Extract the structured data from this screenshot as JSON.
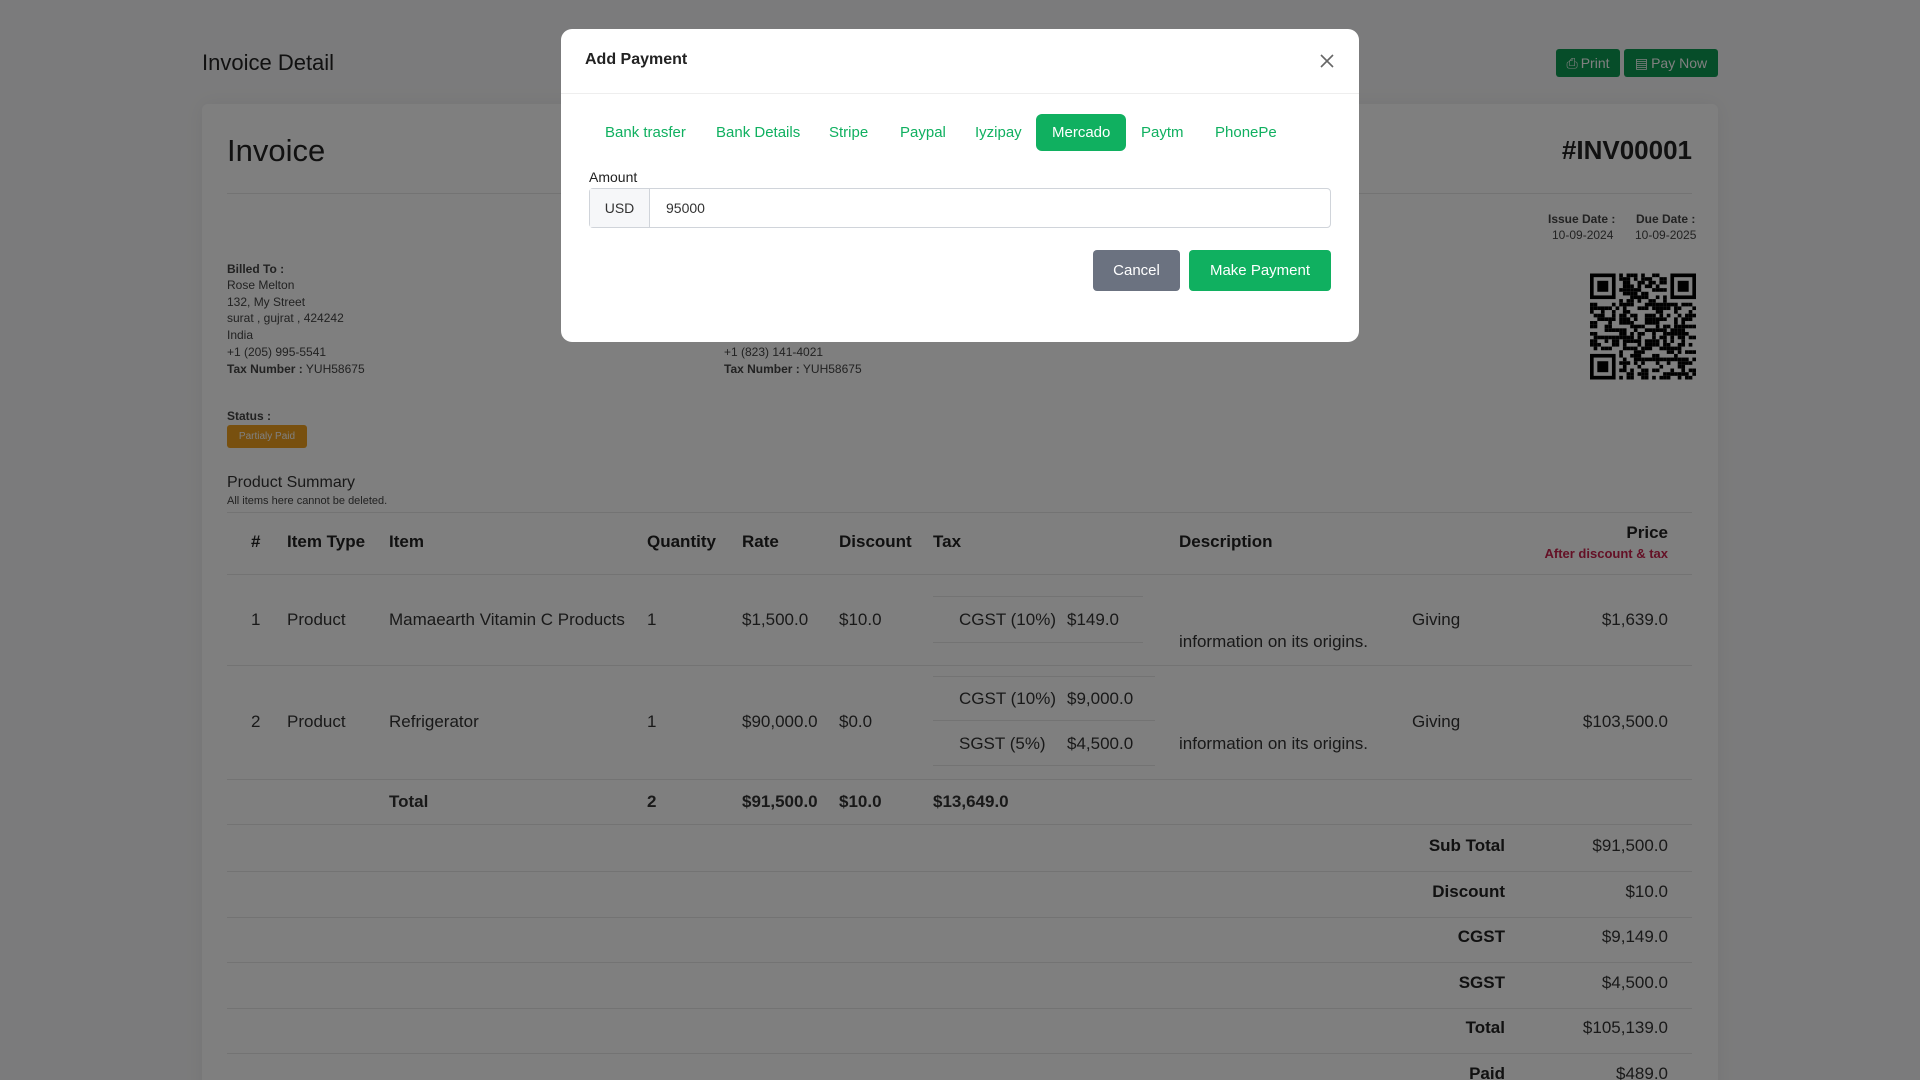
{
  "page": {
    "title": "Invoice Detail",
    "print_label": "Print",
    "pay_now_label": "Pay Now",
    "icons": {
      "print": "printer-icon",
      "pay": "credit-card-icon"
    }
  },
  "invoice": {
    "heading": "Invoice",
    "number": "#INV00001",
    "issue_date_label": "Issue Date :",
    "issue_date": "10-09-2024",
    "due_date_label": "Due Date :",
    "due_date": "10-09-2025",
    "billed_to": {
      "label": "Billed To :",
      "name": "Rose Melton",
      "street": "132, My Street",
      "city": "surat , gujrat , 424242",
      "country": "India",
      "phone": "+1 (205) 995-5541",
      "tax_label": "Tax Number :",
      "tax": "YUH58675"
    },
    "shipped_to": {
      "phone": "+1 (823) 141-4021",
      "tax_label": "Tax Number :",
      "tax": "YUH58675"
    },
    "status_label": "Status :",
    "status": "Partialy Paid",
    "status_color": "#f0a11e"
  },
  "summary": {
    "title": "Product Summary",
    "subtitle": "All items here cannot be deleted.",
    "headers": {
      "num": "#",
      "type": "Item Type",
      "item": "Item",
      "qty": "Quantity",
      "rate": "Rate",
      "discount": "Discount",
      "tax": "Tax",
      "desc": "Description",
      "price": "Price",
      "price_note": "After discount & tax"
    },
    "rows": [
      {
        "num": "1",
        "type": "Product",
        "item": "Mamaearth Vitamin C Products",
        "qty": "1",
        "rate": "$1,500.0",
        "discount": "$10.0",
        "taxes": [
          {
            "name": "CGST (10%)",
            "value": "$149.0"
          }
        ],
        "desc_a": "Giving",
        "desc_b": "information on its origins.",
        "price": "$1,639.0"
      },
      {
        "num": "2",
        "type": "Product",
        "item": "Refrigerator",
        "qty": "1",
        "rate": "$90,000.0",
        "discount": "$0.0",
        "taxes": [
          {
            "name": "CGST (10%)",
            "value": "$9,000.0"
          },
          {
            "name": "SGST (5%)",
            "value": "$4,500.0"
          }
        ],
        "desc_a": "Giving",
        "desc_b": "information on its origins.",
        "price": "$103,500.0"
      }
    ],
    "total": {
      "label": "Total",
      "qty": "2",
      "rate": "$91,500.0",
      "discount": "$10.0",
      "tax": "$13,649.0"
    },
    "totals": [
      {
        "label": "Sub Total",
        "value": "$91,500.0"
      },
      {
        "label": "Discount",
        "value": "$10.0"
      },
      {
        "label": "CGST",
        "value": "$9,149.0"
      },
      {
        "label": "SGST",
        "value": "$4,500.0"
      },
      {
        "label": "Total",
        "value": "$105,139.0"
      },
      {
        "label": "Paid",
        "value": "$489.0"
      }
    ]
  },
  "modal": {
    "title": "Add Payment",
    "tabs": [
      "Bank trasfer",
      "Bank Details",
      "Stripe",
      "Paypal",
      "Iyzipay",
      "Mercado",
      "Paytm",
      "PhonePe"
    ],
    "active_tab": "Mercado",
    "amount_label": "Amount",
    "currency": "USD",
    "amount": "95000",
    "cancel": "Cancel",
    "submit": "Make Payment"
  },
  "colors": {
    "accent": "#10b060",
    "price_note": "#c8234d",
    "cancel": "#6b7280"
  }
}
